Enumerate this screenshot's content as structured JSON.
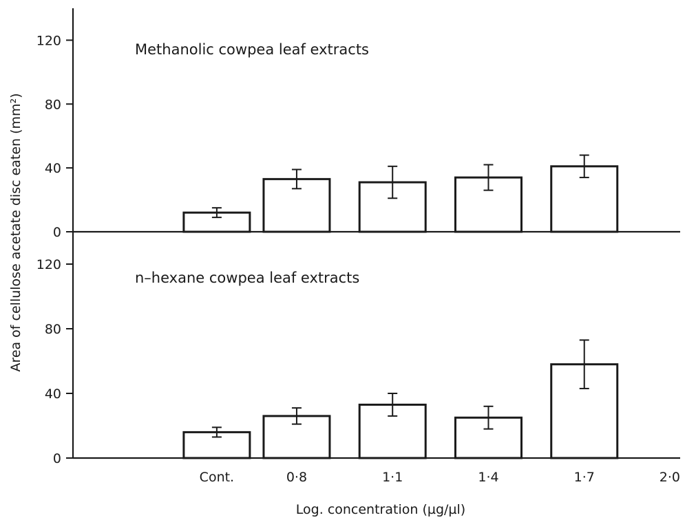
{
  "chart_data": {
    "type": "bar",
    "xlabel": "Log. concentration (µg/µl)",
    "ylabel": "Area of cellulose acetate disc eaten (mm²)",
    "categories": [
      "Cont.",
      "0·8",
      "1·1",
      "1·4",
      "1·7"
    ],
    "x_positions": [
      0.55,
      0.8,
      1.1,
      1.4,
      1.7
    ],
    "x_extra_tick": {
      "value": 2.0,
      "label": "2·0"
    },
    "xlim": [
      0.1,
      2.0
    ],
    "ylim": [
      0,
      140
    ],
    "yticks": [
      0,
      40,
      80,
      120
    ],
    "ytick_labels": [
      "0",
      "40",
      "80",
      "120"
    ],
    "panels": [
      {
        "title": "Methanolic cowpea leaf extracts",
        "values": [
          12,
          33,
          31,
          34,
          41
        ],
        "errors": [
          3,
          6,
          10,
          8,
          7
        ]
      },
      {
        "title": "n–hexane cowpea leaf extracts",
        "values": [
          16,
          26,
          33,
          25,
          58
        ],
        "errors": [
          3,
          5,
          7,
          7,
          15
        ]
      }
    ],
    "grid": false,
    "legend": "none"
  }
}
